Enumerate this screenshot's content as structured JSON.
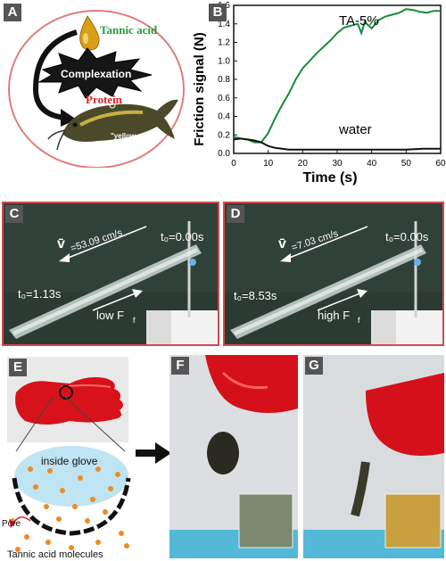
{
  "panel_a": {
    "letter": "A",
    "tannic_label": "Tannic acid",
    "complex_label": "Complexation",
    "protein_label": "Protein",
    "fish_label": "\"yellow catfish\"",
    "colors": {
      "tannic": "#1e9e3a",
      "protein": "#d8262b",
      "circle": "#e27c7c"
    }
  },
  "panel_b": {
    "letter": "B",
    "chart_data": {
      "type": "line",
      "title": "",
      "xlabel": "Time (s)",
      "ylabel": "Friction signal (N)",
      "xlim": [
        0,
        60
      ],
      "ylim": [
        0.0,
        1.6
      ],
      "xticks": [
        0,
        10,
        20,
        30,
        40,
        50,
        60
      ],
      "yticks": [
        0.0,
        0.2,
        0.4,
        0.6,
        0.8,
        1.0,
        1.2,
        1.4,
        1.6
      ],
      "series": [
        {
          "name": "TA-5%",
          "color": "#1a8a3a",
          "x": [
            0,
            2,
            4,
            6,
            8,
            10,
            12,
            14,
            16,
            18,
            20,
            22,
            24,
            26,
            28,
            30,
            32,
            34,
            36,
            37,
            38,
            40,
            42,
            44,
            46,
            48,
            50,
            52,
            54,
            56,
            58,
            60
          ],
          "y": [
            0.18,
            0.16,
            0.15,
            0.12,
            0.12,
            0.22,
            0.38,
            0.52,
            0.65,
            0.8,
            0.92,
            1.0,
            1.08,
            1.15,
            1.22,
            1.3,
            1.36,
            1.38,
            1.4,
            1.3,
            1.42,
            1.35,
            1.44,
            1.48,
            1.5,
            1.52,
            1.56,
            1.55,
            1.53,
            1.52,
            1.54,
            1.54
          ]
        },
        {
          "name": "water",
          "color": "#111111",
          "x": [
            0,
            2,
            4,
            6,
            8,
            10,
            12,
            14,
            16,
            20,
            30,
            40,
            50,
            55,
            60
          ],
          "y": [
            0.15,
            0.16,
            0.15,
            0.14,
            0.12,
            0.08,
            0.06,
            0.05,
            0.04,
            0.04,
            0.04,
            0.04,
            0.04,
            0.05,
            0.05
          ]
        }
      ]
    }
  },
  "panel_c": {
    "letter": "C",
    "velocity": "=53.09 cm/s",
    "t_start": "t₀=0.00s",
    "t_end": "t₀=1.13s",
    "friction": "low F"
  },
  "panel_d": {
    "letter": "D",
    "velocity": "=7.03 cm/s",
    "t_start": "t₀=0.00s",
    "t_end": "t₀=8.53s",
    "friction": "high F"
  },
  "panel_e": {
    "letter": "E",
    "inside_label": "inside glove",
    "pore_label": "Pore",
    "molecules_label": "Tannic acid molecules"
  },
  "panel_f": {
    "letter": "F"
  },
  "panel_g": {
    "letter": "G"
  }
}
